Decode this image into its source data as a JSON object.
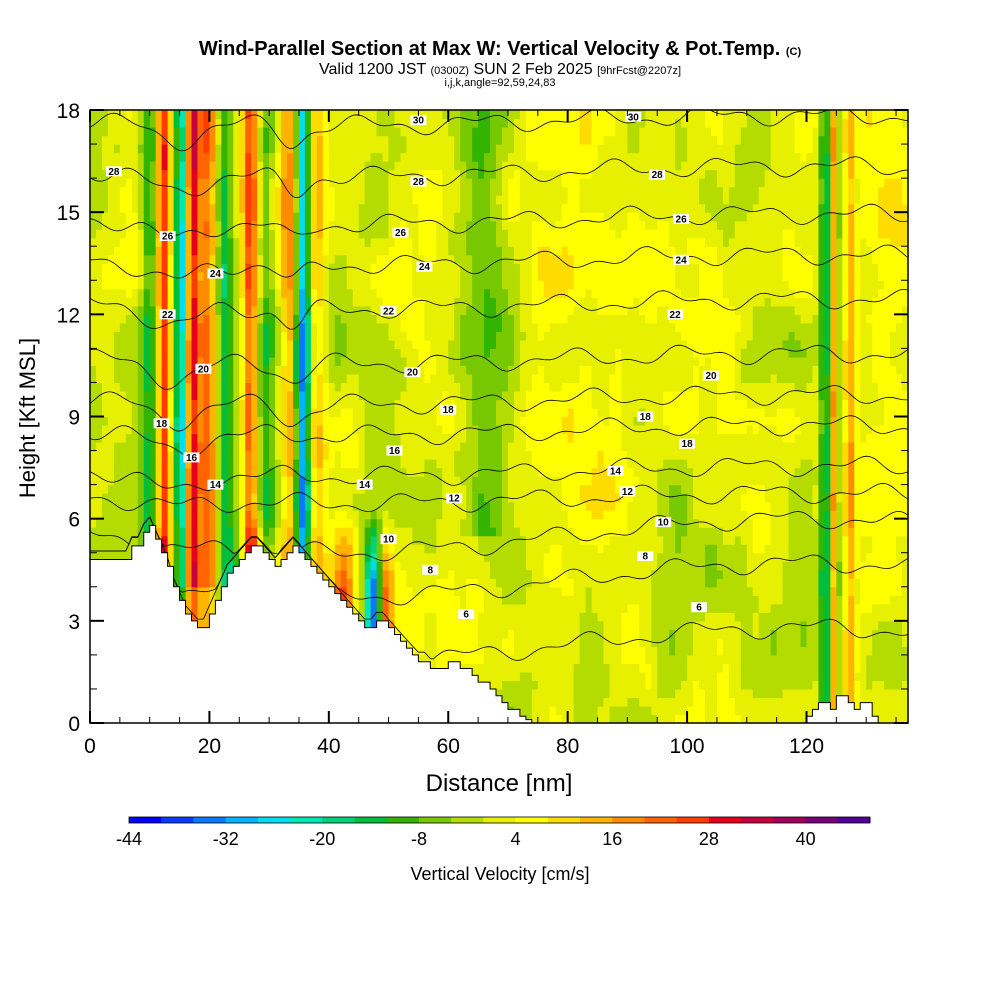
{
  "header": {
    "title": "Wind-Parallel Section at Max W: Vertical Velocity & Pot.Temp.",
    "copyright": "(C)",
    "valid_prefix": "Valid 1200 JST",
    "valid_utc": "(0300Z)",
    "valid_date": "SUN 2 Feb 2025",
    "forecast": "[9hrFcst@2207z]",
    "indices": "i,j,k,angle=92,59,24,83"
  },
  "chart_data": {
    "type": "heatmap",
    "xlabel": "Distance [nm]",
    "ylabel": "Height [Kft MSL]",
    "xlim": [
      0,
      137
    ],
    "ylim": [
      0,
      18
    ],
    "x_ticks": [
      0,
      20,
      40,
      60,
      80,
      100,
      120
    ],
    "y_ticks": [
      0,
      3,
      6,
      9,
      12,
      15,
      18
    ],
    "colorbar": {
      "label": "Vertical Velocity [cm/s]",
      "min": -44,
      "max": 48,
      "step": 4,
      "tick_labels": [
        -44,
        -32,
        -20,
        -8,
        4,
        16,
        28,
        40
      ],
      "colors": [
        "#0000ff",
        "#0a3cff",
        "#0a78ff",
        "#00b4ff",
        "#00dcf0",
        "#00e6b4",
        "#00d278",
        "#00be3c",
        "#32b400",
        "#78c800",
        "#b4dc00",
        "#e6f000",
        "#ffff00",
        "#ffdc00",
        "#ffb400",
        "#ff8c00",
        "#ff6400",
        "#ff3c00",
        "#e6001e",
        "#c8003c",
        "#a0005a",
        "#780078",
        "#500096"
      ]
    },
    "terrain_kft": [
      [
        0,
        4.8
      ],
      [
        6,
        4.8
      ],
      [
        7,
        5.2
      ],
      [
        8,
        5.2
      ],
      [
        9,
        5.6
      ],
      [
        10,
        5.8
      ],
      [
        11,
        5.4
      ],
      [
        12,
        5.0
      ],
      [
        13,
        4.6
      ],
      [
        14,
        4.0
      ],
      [
        15,
        3.6
      ],
      [
        16,
        3.2
      ],
      [
        17,
        3.0
      ],
      [
        18,
        2.8
      ],
      [
        19,
        2.8
      ],
      [
        20,
        3.2
      ],
      [
        21,
        3.6
      ],
      [
        22,
        4.0
      ],
      [
        23,
        4.4
      ],
      [
        24,
        4.6
      ],
      [
        25,
        4.8
      ],
      [
        26,
        5.0
      ],
      [
        27,
        5.2
      ],
      [
        28,
        5.2
      ],
      [
        29,
        5.0
      ],
      [
        30,
        4.8
      ],
      [
        31,
        4.6
      ],
      [
        32,
        4.8
      ],
      [
        33,
        5.0
      ],
      [
        34,
        5.2
      ],
      [
        35,
        5.0
      ],
      [
        36,
        4.8
      ],
      [
        37,
        4.6
      ],
      [
        38,
        4.4
      ],
      [
        39,
        4.2
      ],
      [
        40,
        4.0
      ],
      [
        41,
        3.8
      ],
      [
        42,
        3.6
      ],
      [
        43,
        3.4
      ],
      [
        44,
        3.2
      ],
      [
        45,
        3.0
      ],
      [
        46,
        2.8
      ],
      [
        47,
        2.8
      ],
      [
        48,
        3.0
      ],
      [
        49,
        3.0
      ],
      [
        50,
        2.8
      ],
      [
        51,
        2.6
      ],
      [
        52,
        2.4
      ],
      [
        53,
        2.2
      ],
      [
        54,
        2.0
      ],
      [
        55,
        1.8
      ],
      [
        56,
        1.8
      ],
      [
        57,
        1.6
      ],
      [
        58,
        1.6
      ],
      [
        59,
        1.6
      ],
      [
        60,
        1.8
      ],
      [
        61,
        1.8
      ],
      [
        62,
        1.6
      ],
      [
        63,
        1.6
      ],
      [
        64,
        1.4
      ],
      [
        65,
        1.2
      ],
      [
        66,
        1.2
      ],
      [
        67,
        1.0
      ],
      [
        68,
        0.8
      ],
      [
        69,
        0.6
      ],
      [
        70,
        0.4
      ],
      [
        71,
        0.4
      ],
      [
        72,
        0.2
      ],
      [
        73,
        0.1
      ],
      [
        74,
        0.0
      ],
      [
        118,
        0.0
      ],
      [
        119,
        0.0
      ],
      [
        120,
        0.2
      ],
      [
        121,
        0.4
      ],
      [
        122,
        0.6
      ],
      [
        123,
        0.6
      ],
      [
        124,
        0.4
      ],
      [
        125,
        0.8
      ],
      [
        126,
        0.8
      ],
      [
        127,
        0.6
      ],
      [
        128,
        0.4
      ],
      [
        129,
        0.6
      ],
      [
        130,
        0.6
      ],
      [
        131,
        0.2
      ],
      [
        132,
        0.0
      ],
      [
        137,
        0.0
      ]
    ],
    "theta_contours": [
      {
        "label": "6",
        "base": 2.3,
        "labels_at": [
          [
            63,
            3.2
          ],
          [
            102,
            3.4
          ]
        ]
      },
      {
        "label": "8",
        "base": 4.2,
        "labels_at": [
          [
            57,
            4.5
          ],
          [
            93,
            4.9
          ]
        ]
      },
      {
        "label": "10",
        "base": 5.5,
        "labels_at": [
          [
            50,
            5.4
          ],
          [
            96,
            5.9
          ]
        ]
      },
      {
        "label": "12",
        "base": 6.6,
        "labels_at": [
          [
            61,
            6.6
          ],
          [
            90,
            6.8
          ]
        ]
      },
      {
        "label": "14",
        "base": 7.4,
        "labels_at": [
          [
            21,
            7.0
          ],
          [
            46,
            7.0
          ],
          [
            88,
            7.4
          ]
        ]
      },
      {
        "label": "16",
        "base": 8.6,
        "labels_at": [
          [
            17,
            7.8
          ],
          [
            51,
            8.0
          ]
        ]
      },
      {
        "label": "18",
        "base": 9.5,
        "labels_at": [
          [
            12,
            8.8
          ],
          [
            60,
            9.2
          ],
          [
            93,
            9.0
          ],
          [
            100,
            8.2
          ]
        ]
      },
      {
        "label": "20",
        "base": 10.7,
        "labels_at": [
          [
            19,
            10.4
          ],
          [
            54,
            10.3
          ],
          [
            104,
            10.2
          ]
        ]
      },
      {
        "label": "22",
        "base": 12.3,
        "labels_at": [
          [
            13,
            12.0
          ],
          [
            50,
            12.1
          ],
          [
            98,
            12.0
          ]
        ]
      },
      {
        "label": "24",
        "base": 13.6,
        "labels_at": [
          [
            21,
            13.2
          ],
          [
            56,
            13.4
          ],
          [
            99,
            13.6
          ]
        ]
      },
      {
        "label": "26",
        "base": 14.8,
        "labels_at": [
          [
            13,
            14.3
          ],
          [
            52,
            14.4
          ],
          [
            99,
            14.8
          ]
        ]
      },
      {
        "label": "28",
        "base": 16.2,
        "labels_at": [
          [
            4,
            16.2
          ],
          [
            55,
            15.9
          ],
          [
            95,
            16.1
          ]
        ]
      },
      {
        "label": "30",
        "base": 17.7,
        "labels_at": [
          [
            55,
            17.7
          ],
          [
            91,
            17.8
          ]
        ]
      }
    ]
  }
}
